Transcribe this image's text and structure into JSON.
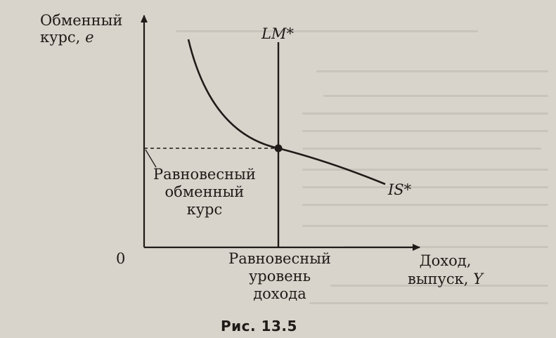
{
  "y_axis_label_line1": "Обменный",
  "y_axis_label_line2": "курс,",
  "y_axis_symbol": "e",
  "x_axis_label_line1": "Доход,",
  "x_axis_label_line2": "выпуск,",
  "x_axis_symbol": "Y",
  "origin_label": "0",
  "lm_curve_label": "LM*",
  "is_curve_label": "IS*",
  "equilibrium_rate_label": [
    "Равновесный",
    "обменный",
    "курс"
  ],
  "equilibrium_income_label": [
    "Равновесный",
    "уровень",
    "дохода"
  ],
  "figure_caption": "Рис. 13.5"
}
